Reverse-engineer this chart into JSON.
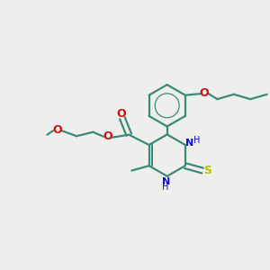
{
  "bg_color": "#eeeeed",
  "bond_color": "#3a8a7a",
  "nitrogen_color": "#1010cc",
  "oxygen_color": "#cc1010",
  "sulfur_color": "#bbbb10",
  "line_width": 1.6,
  "figsize": [
    3.0,
    3.0
  ],
  "dpi": 100,
  "xlim": [
    0,
    10
  ],
  "ylim": [
    0,
    10
  ]
}
